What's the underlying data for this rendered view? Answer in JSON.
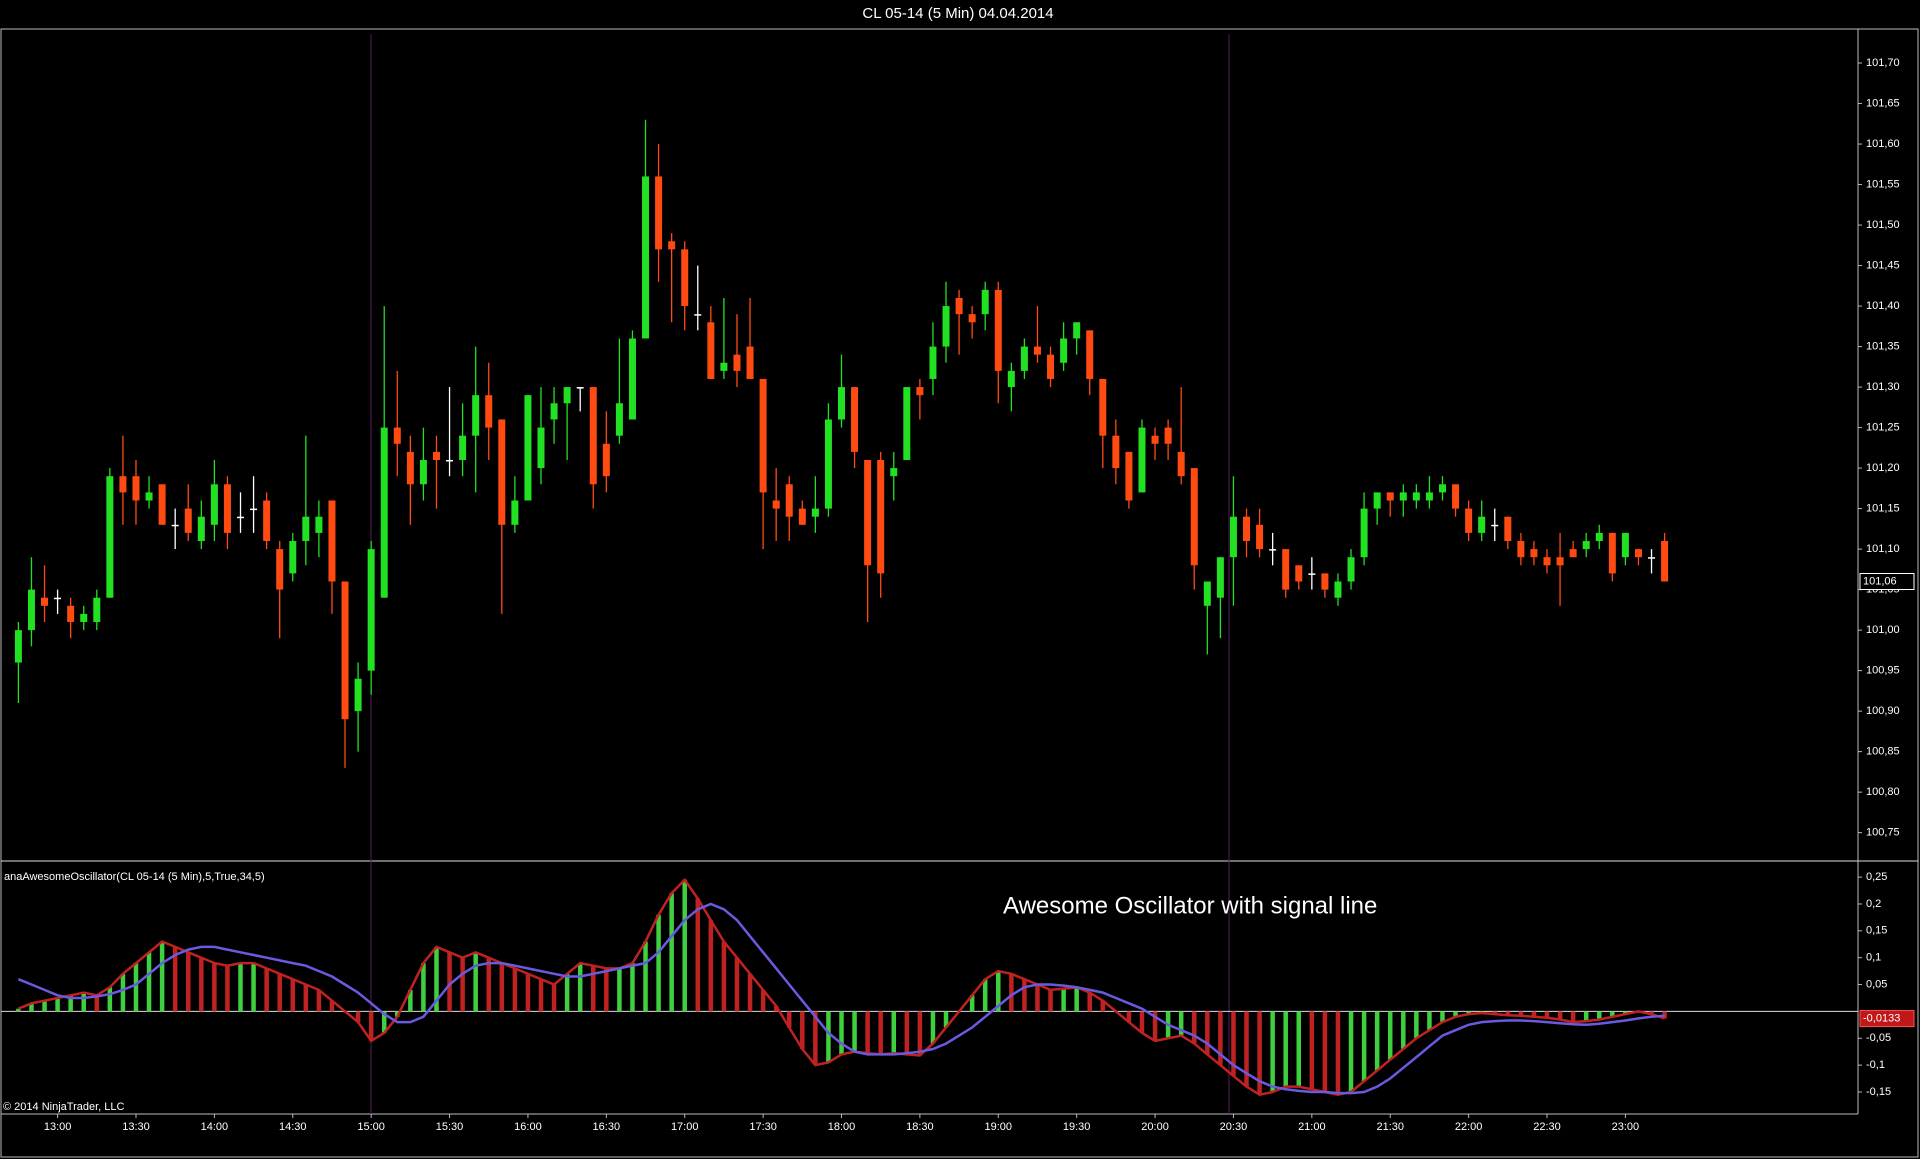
{
  "chart_data": [
    {
      "type": "candlestick",
      "title": "CL 05-14 (5 Min)  04.04.2014",
      "x": [
        "12:45",
        "12:50",
        "12:55",
        "13:00",
        "13:05",
        "13:10",
        "13:15",
        "13:20",
        "13:25",
        "13:30",
        "13:35",
        "13:40",
        "13:45",
        "13:50",
        "13:55",
        "14:00",
        "14:05",
        "14:10",
        "14:15",
        "14:20",
        "14:25",
        "14:30",
        "14:35",
        "14:40",
        "14:45",
        "14:50",
        "14:55",
        "15:00",
        "15:05",
        "15:10",
        "15:15",
        "15:20",
        "15:25",
        "15:30",
        "15:35",
        "15:40",
        "15:45",
        "15:50",
        "15:55",
        "16:00",
        "16:05",
        "16:10",
        "16:15",
        "16:20",
        "16:25",
        "16:30",
        "16:35",
        "16:40",
        "16:45",
        "16:50",
        "16:55",
        "17:00",
        "17:05",
        "17:10",
        "17:15",
        "17:20",
        "17:25",
        "17:30",
        "17:35",
        "17:40",
        "17:45",
        "17:50",
        "17:55",
        "18:00",
        "18:05",
        "18:10",
        "18:15",
        "18:20",
        "18:25",
        "18:30",
        "18:35",
        "18:40",
        "18:45",
        "18:50",
        "18:55",
        "19:00",
        "19:05",
        "19:10",
        "19:15",
        "19:20",
        "19:25",
        "19:30",
        "19:35",
        "19:40",
        "19:45",
        "19:50",
        "19:55",
        "20:00",
        "20:05",
        "20:10",
        "20:15",
        "20:20",
        "20:25",
        "20:30",
        "20:35",
        "20:40",
        "20:45",
        "20:50",
        "20:55",
        "21:00",
        "21:05",
        "21:10",
        "21:15",
        "21:20",
        "21:25",
        "21:30",
        "21:35",
        "21:40",
        "21:45",
        "21:50",
        "21:55",
        "22:00",
        "22:05",
        "22:10",
        "22:15",
        "22:20",
        "22:25",
        "22:30",
        "22:35",
        "22:40",
        "22:45",
        "22:50",
        "22:55",
        "23:00",
        "23:05",
        "23:10",
        "23:15"
      ],
      "open": [
        100.96,
        101.0,
        101.04,
        101.04,
        101.03,
        101.01,
        101.01,
        101.04,
        101.19,
        101.19,
        101.16,
        101.18,
        101.13,
        101.15,
        101.11,
        101.13,
        101.18,
        101.14,
        101.15,
        101.16,
        101.1,
        101.07,
        101.11,
        101.12,
        101.16,
        101.06,
        100.9,
        100.95,
        101.04,
        101.25,
        101.22,
        101.18,
        101.22,
        101.21,
        101.21,
        101.24,
        101.29,
        101.26,
        101.13,
        101.16,
        101.2,
        101.26,
        101.28,
        101.3,
        101.3,
        101.23,
        101.24,
        101.26,
        101.36,
        101.56,
        101.48,
        101.47,
        101.39,
        101.38,
        101.32,
        101.34,
        101.35,
        101.31,
        101.16,
        101.18,
        101.15,
        101.14,
        101.15,
        101.26,
        101.3,
        101.21,
        101.21,
        101.19,
        101.21,
        101.3,
        101.31,
        101.35,
        101.41,
        101.39,
        101.39,
        101.42,
        101.3,
        101.32,
        101.35,
        101.34,
        101.33,
        101.36,
        101.37,
        101.31,
        101.24,
        101.22,
        101.17,
        101.24,
        101.25,
        101.22,
        101.2,
        101.03,
        101.04,
        101.09,
        101.14,
        101.13,
        101.1,
        101.1,
        101.08,
        101.07,
        101.07,
        101.04,
        101.06,
        101.09,
        101.15,
        101.17,
        101.16,
        101.16,
        101.16,
        101.17,
        101.18,
        101.15,
        101.12,
        101.13,
        101.14,
        101.11,
        101.1,
        101.09,
        101.09,
        101.1,
        101.1,
        101.11,
        101.12,
        101.09,
        101.1,
        101.09,
        101.11
      ],
      "high": [
        101.01,
        101.09,
        101.08,
        101.05,
        101.04,
        101.03,
        101.05,
        101.2,
        101.24,
        101.21,
        101.19,
        101.18,
        101.15,
        101.18,
        101.16,
        101.21,
        101.19,
        101.17,
        101.19,
        101.17,
        101.11,
        101.12,
        101.24,
        101.16,
        101.16,
        101.06,
        100.96,
        101.11,
        101.4,
        101.32,
        101.24,
        101.25,
        101.24,
        101.3,
        101.28,
        101.35,
        101.33,
        101.26,
        101.19,
        101.29,
        101.3,
        101.3,
        101.3,
        101.3,
        101.3,
        101.27,
        101.36,
        101.37,
        101.63,
        101.6,
        101.49,
        101.48,
        101.45,
        101.4,
        101.41,
        101.39,
        101.41,
        101.31,
        101.2,
        101.19,
        101.16,
        101.19,
        101.28,
        101.34,
        101.3,
        101.21,
        101.22,
        101.22,
        101.3,
        101.31,
        101.38,
        101.43,
        101.42,
        101.4,
        101.43,
        101.43,
        101.33,
        101.36,
        101.4,
        101.35,
        101.38,
        101.38,
        101.37,
        101.31,
        101.26,
        101.22,
        101.26,
        101.25,
        101.26,
        101.3,
        101.2,
        101.06,
        101.09,
        101.19,
        101.15,
        101.15,
        101.12,
        101.1,
        101.08,
        101.09,
        101.07,
        101.07,
        101.1,
        101.17,
        101.17,
        101.17,
        101.18,
        101.18,
        101.19,
        101.19,
        101.18,
        101.16,
        101.16,
        101.15,
        101.14,
        101.12,
        101.11,
        101.1,
        101.12,
        101.11,
        101.12,
        101.13,
        101.12,
        101.12,
        101.1,
        101.1,
        101.12
      ],
      "low": [
        100.91,
        100.98,
        101.01,
        101.02,
        100.99,
        101.0,
        101.0,
        101.04,
        101.13,
        101.13,
        101.15,
        101.13,
        101.1,
        101.11,
        101.1,
        101.11,
        101.1,
        101.12,
        101.12,
        101.1,
        100.99,
        101.06,
        101.08,
        101.09,
        101.02,
        100.83,
        100.85,
        100.92,
        101.04,
        101.19,
        101.13,
        101.16,
        101.15,
        101.19,
        101.19,
        101.17,
        101.21,
        101.02,
        101.12,
        101.16,
        101.18,
        101.23,
        101.21,
        101.27,
        101.15,
        101.17,
        101.23,
        101.26,
        101.36,
        101.43,
        101.38,
        101.37,
        101.37,
        101.31,
        101.31,
        101.3,
        101.31,
        101.1,
        101.11,
        101.11,
        101.13,
        101.12,
        101.14,
        101.25,
        101.2,
        101.01,
        101.04,
        101.16,
        101.21,
        101.26,
        101.29,
        101.33,
        101.34,
        101.36,
        101.37,
        101.28,
        101.27,
        101.31,
        101.33,
        101.3,
        101.32,
        101.34,
        101.29,
        101.2,
        101.18,
        101.15,
        101.17,
        101.21,
        101.21,
        101.18,
        101.05,
        100.97,
        100.99,
        101.03,
        101.09,
        101.09,
        101.08,
        101.04,
        101.05,
        101.05,
        101.04,
        101.03,
        101.05,
        101.08,
        101.13,
        101.14,
        101.14,
        101.15,
        101.15,
        101.16,
        101.14,
        101.11,
        101.11,
        101.11,
        101.1,
        101.08,
        101.08,
        101.07,
        101.03,
        101.09,
        101.09,
        101.1,
        101.06,
        101.08,
        101.08,
        101.07,
        101.06
      ],
      "close": [
        101.0,
        101.05,
        101.03,
        101.04,
        101.01,
        101.02,
        101.04,
        101.19,
        101.17,
        101.16,
        101.17,
        101.13,
        101.13,
        101.12,
        101.14,
        101.18,
        101.12,
        101.14,
        101.15,
        101.11,
        101.05,
        101.11,
        101.14,
        101.14,
        101.06,
        100.89,
        100.94,
        101.1,
        101.25,
        101.23,
        101.18,
        101.21,
        101.21,
        101.21,
        101.24,
        101.29,
        101.25,
        101.13,
        101.16,
        101.29,
        101.25,
        101.28,
        101.3,
        101.3,
        101.18,
        101.19,
        101.28,
        101.36,
        101.56,
        101.47,
        101.47,
        101.4,
        101.39,
        101.31,
        101.33,
        101.32,
        101.31,
        101.17,
        101.15,
        101.14,
        101.13,
        101.15,
        101.26,
        101.3,
        101.22,
        101.08,
        101.07,
        101.2,
        101.3,
        101.29,
        101.35,
        101.4,
        101.39,
        101.38,
        101.42,
        101.32,
        101.32,
        101.35,
        101.34,
        101.31,
        101.36,
        101.38,
        101.31,
        101.24,
        101.2,
        101.16,
        101.25,
        101.23,
        101.23,
        101.19,
        101.08,
        101.06,
        101.09,
        101.14,
        101.11,
        101.1,
        101.1,
        101.05,
        101.06,
        101.07,
        101.05,
        101.06,
        101.09,
        101.15,
        101.17,
        101.16,
        101.17,
        101.17,
        101.17,
        101.18,
        101.15,
        101.12,
        101.14,
        101.13,
        101.11,
        101.09,
        101.09,
        101.08,
        101.08,
        101.09,
        101.11,
        101.12,
        101.07,
        101.12,
        101.09,
        101.09,
        101.06
      ],
      "up_color": "#22e022",
      "down_color": "#ff4a12",
      "doji_color": "#ffffff",
      "ylim": [
        100.715,
        101.742
      ],
      "yticks": [
        {
          "value": 100.75,
          "label": "100,75"
        },
        {
          "value": 100.8,
          "label": "100,80"
        },
        {
          "value": 100.85,
          "label": "100,85"
        },
        {
          "value": 100.9,
          "label": "100,90"
        },
        {
          "value": 100.95,
          "label": "100,95"
        },
        {
          "value": 101.0,
          "label": "101,00"
        },
        {
          "value": 101.05,
          "label": "101,05"
        },
        {
          "value": 101.1,
          "label": "101,10"
        },
        {
          "value": 101.15,
          "label": "101,15"
        },
        {
          "value": 101.2,
          "label": "101,20"
        },
        {
          "value": 101.25,
          "label": "101,25"
        },
        {
          "value": 101.3,
          "label": "101,30"
        },
        {
          "value": 101.35,
          "label": "101,35"
        },
        {
          "value": 101.4,
          "label": "101,40"
        },
        {
          "value": 101.45,
          "label": "101,45"
        },
        {
          "value": 101.5,
          "label": "101,50"
        },
        {
          "value": 101.55,
          "label": "101,55"
        },
        {
          "value": 101.6,
          "label": "101,60"
        },
        {
          "value": 101.65,
          "label": "101,65"
        },
        {
          "value": 101.7,
          "label": "101,70"
        }
      ],
      "last_value": {
        "value": 101.06,
        "label": "101,06"
      }
    },
    {
      "type": "bar",
      "title": "anaAwesomeOscillator(CL 05-14 (5 Min),5,True,34,5)",
      "annotation": "Awesome Oscillator with signal line",
      "histogram": {
        "up_color": "#3ed03e",
        "down_color": "#c02222",
        "values": [
          0.005,
          0.015,
          0.02,
          0.025,
          0.03,
          0.035,
          0.03,
          0.045,
          0.07,
          0.09,
          0.11,
          0.13,
          0.12,
          0.11,
          0.1,
          0.09,
          0.085,
          0.09,
          0.09,
          0.08,
          0.07,
          0.06,
          0.05,
          0.04,
          0.02,
          0.0,
          -0.02,
          -0.055,
          -0.04,
          -0.01,
          0.04,
          0.09,
          0.12,
          0.11,
          0.1,
          0.11,
          0.1,
          0.09,
          0.08,
          0.07,
          0.06,
          0.05,
          0.07,
          0.09,
          0.085,
          0.08,
          0.08,
          0.09,
          0.13,
          0.18,
          0.22,
          0.245,
          0.21,
          0.17,
          0.13,
          0.1,
          0.07,
          0.04,
          0.01,
          -0.03,
          -0.07,
          -0.1,
          -0.095,
          -0.08,
          -0.075,
          -0.078,
          -0.08,
          -0.078,
          -0.08,
          -0.082,
          -0.06,
          -0.03,
          0.0,
          0.03,
          0.06,
          0.075,
          0.07,
          0.06,
          0.05,
          0.04,
          0.042,
          0.045,
          0.035,
          0.02,
          0.0,
          -0.02,
          -0.04,
          -0.055,
          -0.05,
          -0.045,
          -0.06,
          -0.08,
          -0.1,
          -0.12,
          -0.14,
          -0.155,
          -0.15,
          -0.14,
          -0.14,
          -0.145,
          -0.15,
          -0.155,
          -0.15,
          -0.13,
          -0.11,
          -0.09,
          -0.07,
          -0.05,
          -0.035,
          -0.02,
          -0.01,
          -0.005,
          -0.003,
          -0.005,
          -0.007,
          -0.008,
          -0.01,
          -0.012,
          -0.015,
          -0.02,
          -0.018,
          -0.015,
          -0.01,
          -0.005,
          0.0,
          -0.005,
          -0.0133
        ]
      },
      "signal": {
        "color": "#6a5ae0",
        "values": [
          0.06,
          0.05,
          0.04,
          0.03,
          0.025,
          0.025,
          0.028,
          0.032,
          0.04,
          0.05,
          0.07,
          0.09,
          0.105,
          0.115,
          0.12,
          0.12,
          0.115,
          0.11,
          0.105,
          0.1,
          0.095,
          0.09,
          0.085,
          0.075,
          0.065,
          0.05,
          0.035,
          0.015,
          -0.005,
          -0.02,
          -0.02,
          -0.01,
          0.02,
          0.05,
          0.07,
          0.085,
          0.09,
          0.09,
          0.085,
          0.08,
          0.075,
          0.07,
          0.065,
          0.065,
          0.07,
          0.075,
          0.08,
          0.085,
          0.09,
          0.11,
          0.14,
          0.17,
          0.19,
          0.2,
          0.19,
          0.17,
          0.14,
          0.11,
          0.08,
          0.05,
          0.02,
          -0.01,
          -0.04,
          -0.06,
          -0.075,
          -0.08,
          -0.08,
          -0.08,
          -0.078,
          -0.075,
          -0.07,
          -0.06,
          -0.045,
          -0.03,
          -0.01,
          0.01,
          0.03,
          0.045,
          0.05,
          0.05,
          0.048,
          0.045,
          0.04,
          0.035,
          0.025,
          0.015,
          0.005,
          -0.01,
          -0.025,
          -0.035,
          -0.045,
          -0.06,
          -0.08,
          -0.1,
          -0.115,
          -0.13,
          -0.14,
          -0.145,
          -0.148,
          -0.15,
          -0.15,
          -0.152,
          -0.152,
          -0.15,
          -0.14,
          -0.125,
          -0.105,
          -0.085,
          -0.065,
          -0.045,
          -0.035,
          -0.025,
          -0.02,
          -0.018,
          -0.017,
          -0.017,
          -0.018,
          -0.02,
          -0.022,
          -0.024,
          -0.025,
          -0.023,
          -0.02,
          -0.017,
          -0.013,
          -0.01,
          -0.008
        ]
      },
      "ylim": [
        -0.191,
        0.28
      ],
      "yticks": [
        {
          "value": -0.15,
          "label": "-0,15"
        },
        {
          "value": -0.1,
          "label": "-0,1"
        },
        {
          "value": -0.05,
          "label": "-0,05"
        },
        {
          "value": 0.05,
          "label": "0,05"
        },
        {
          "value": 0.1,
          "label": "0,1"
        },
        {
          "value": 0.15,
          "label": "0,15"
        },
        {
          "value": 0.2,
          "label": "0,2"
        },
        {
          "value": 0.25,
          "label": "0,25"
        }
      ],
      "last_value": {
        "value": -0.0133,
        "label": "-0,0133"
      }
    }
  ],
  "footer": {
    "copyright": "© 2014 NinjaTrader, LLC"
  }
}
